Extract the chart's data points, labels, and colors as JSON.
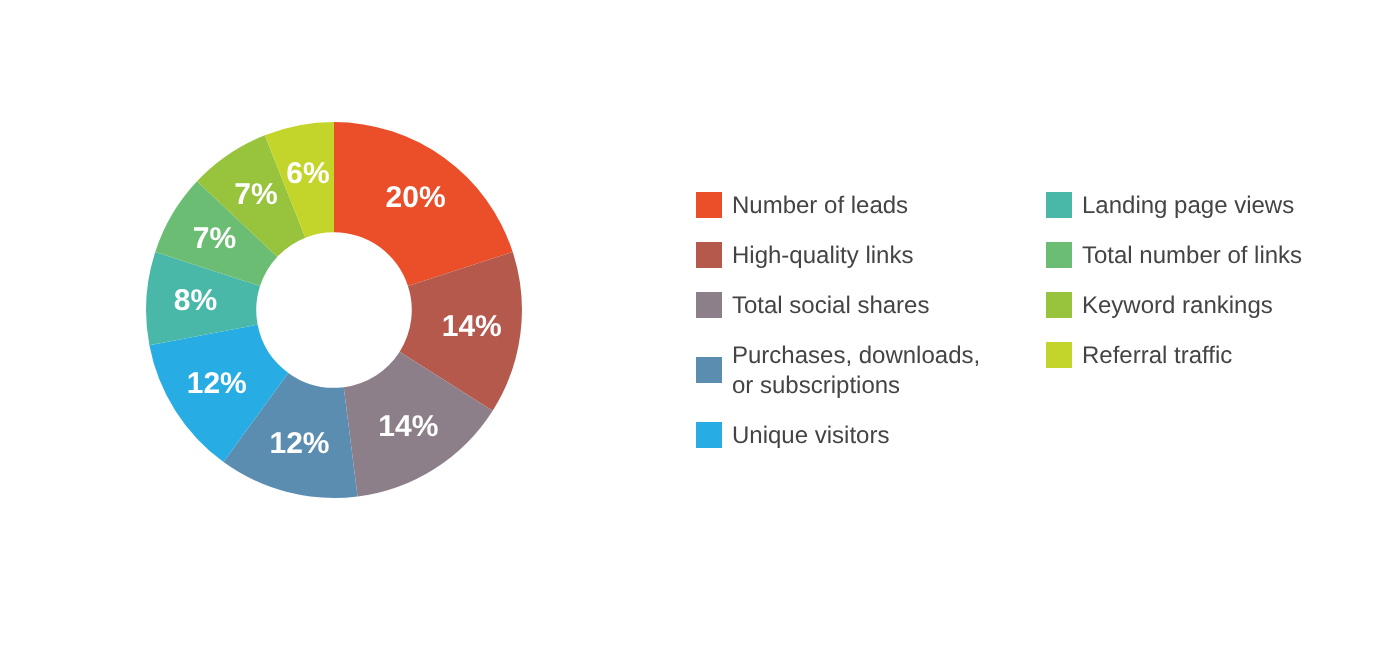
{
  "chart_data": {
    "type": "donut",
    "categories": [
      "Number of leads",
      "High-quality links",
      "Total social shares",
      "Purchases, downloads, or subscriptions",
      "Unique visitors",
      "Landing page views",
      "Total number of links",
      "Keyword rankings",
      "Referral traffic"
    ],
    "values": [
      20,
      14,
      14,
      12,
      12,
      8,
      7,
      7,
      6
    ],
    "value_labels": [
      "20%",
      "14%",
      "14%",
      "12%",
      "12%",
      "8%",
      "7%",
      "7%",
      "6%"
    ],
    "colors": [
      "#ea4f2a",
      "#b5594c",
      "#8d7f89",
      "#5a8db0",
      "#27ade3",
      "#49b8a8",
      "#6cbd74",
      "#97c33d",
      "#c3d52b"
    ],
    "legend": "right"
  }
}
